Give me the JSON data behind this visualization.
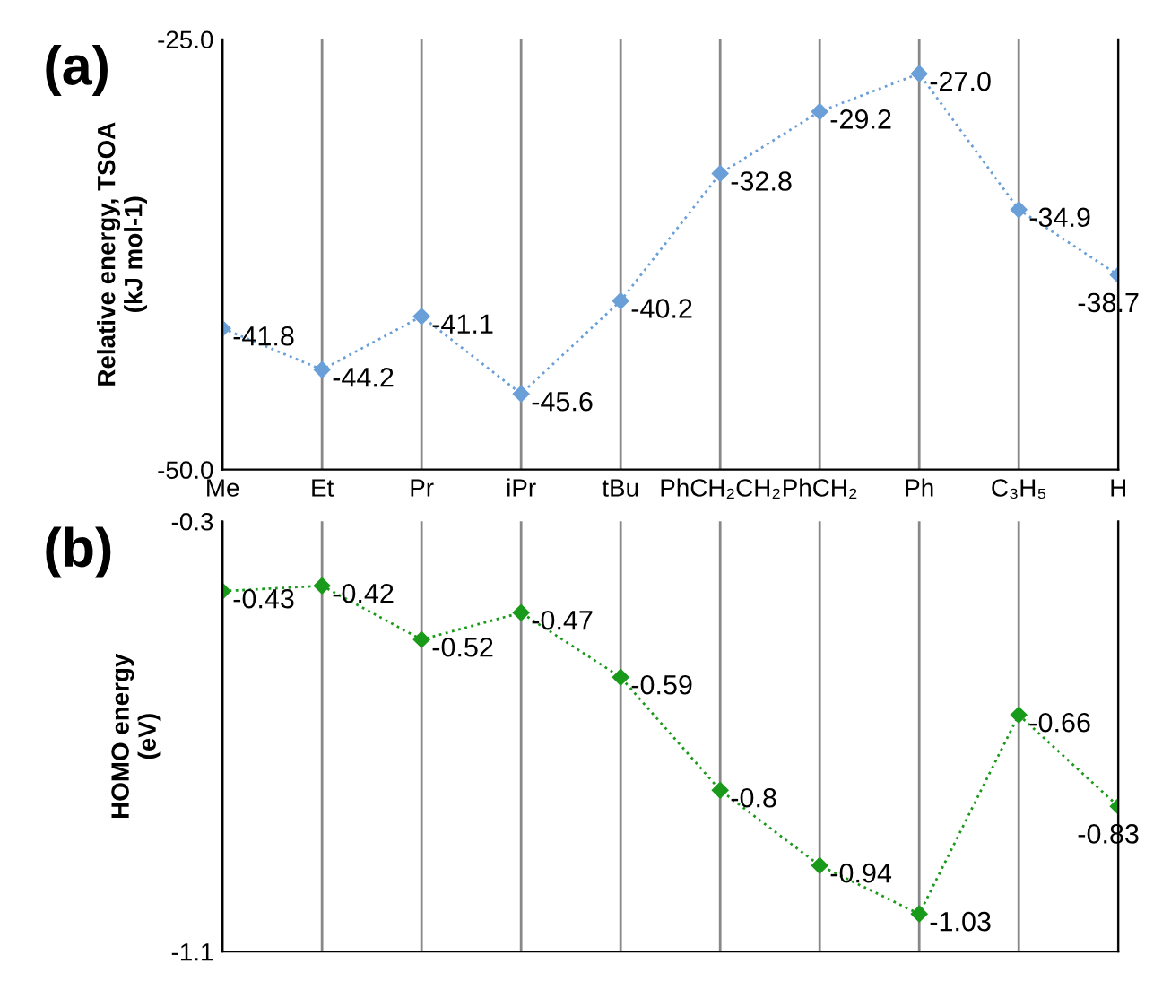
{
  "chart_data": [
    {
      "type": "line",
      "title": "(a)",
      "ylabel": "Relative energy, TSOA\n(kJ mol-1)",
      "categories": [
        "Me",
        "Et",
        "Pr",
        "iPr",
        "tBu",
        "PhCH₂CH₂",
        "PhCH₂",
        "Ph",
        "C₃H₅",
        "H"
      ],
      "series": [
        {
          "color": "#6a9fd8",
          "values": [
            -41.8,
            -44.2,
            -41.1,
            -45.6,
            -40.2,
            -32.8,
            -29.2,
            -27.0,
            -34.9,
            -38.7
          ],
          "value_labels": [
            "-41.8",
            "-44.2",
            "-41.1",
            "-45.6",
            "-40.2",
            "-32.8",
            "-29.2",
            "-27.0",
            "-34.9",
            "-38.7"
          ]
        }
      ],
      "ylim": [
        -50,
        -25
      ],
      "yticks": [
        {
          "value": -50,
          "label": "-50.0"
        },
        {
          "value": -25,
          "label": "-25.0"
        }
      ],
      "grid": "x",
      "marker": "diamond",
      "line_style": "dotted"
    },
    {
      "type": "line",
      "title": "(b)",
      "ylabel": "HOMO energy\n(eV)",
      "categories": [
        null,
        null,
        null,
        null,
        null,
        null,
        null,
        null,
        null,
        null
      ],
      "series": [
        {
          "color": "#1a9a1a",
          "values": [
            -0.43,
            -0.42,
            -0.52,
            -0.47,
            -0.59,
            -0.8,
            -0.94,
            -1.03,
            -0.66,
            -0.83
          ],
          "value_labels": [
            "-0.43",
            "-0.42",
            "-0.52",
            "-0.47",
            "-0.59",
            "-0.8",
            "-0.94",
            "-1.03",
            "-0.66",
            "-0.83"
          ]
        }
      ],
      "ylim": [
        -1.1,
        -0.3
      ],
      "yticks": [
        -1.1,
        -0.3
      ],
      "grid": "x",
      "marker": "diamond",
      "line_style": "dotted"
    }
  ]
}
